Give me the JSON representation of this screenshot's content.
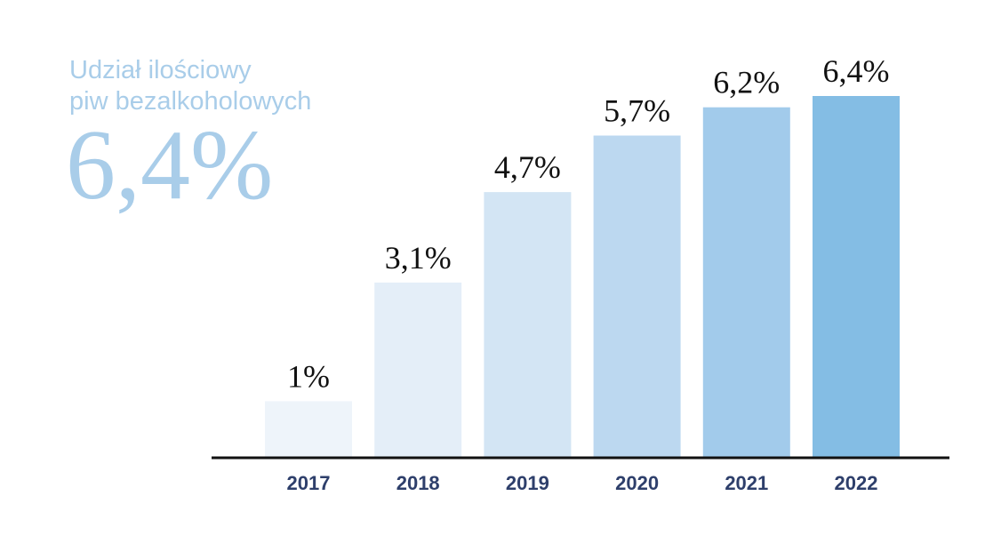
{
  "headline": {
    "line1": "Udział ilościowy",
    "line2": "piw bezalkoholowych",
    "value": "6,4%"
  },
  "colors": {
    "headline": "#a9cde9",
    "bars": [
      "#eef4fa",
      "#e4eef8",
      "#d3e5f4",
      "#bcd8f0",
      "#a2cbeb",
      "#84bde4"
    ],
    "axis": "#111111",
    "category_text": "#2e3f6b"
  },
  "chart_data": {
    "type": "bar",
    "categories": [
      "2017",
      "2018",
      "2019",
      "2020",
      "2021",
      "2022"
    ],
    "values": [
      1,
      3.1,
      4.7,
      5.7,
      6.2,
      6.4
    ],
    "value_labels": [
      "1%",
      "3,1%",
      "4,7%",
      "5,7%",
      "6,2%",
      "6,4%"
    ],
    "ylim": [
      0,
      6.4
    ],
    "grid": false,
    "legend": "none"
  }
}
